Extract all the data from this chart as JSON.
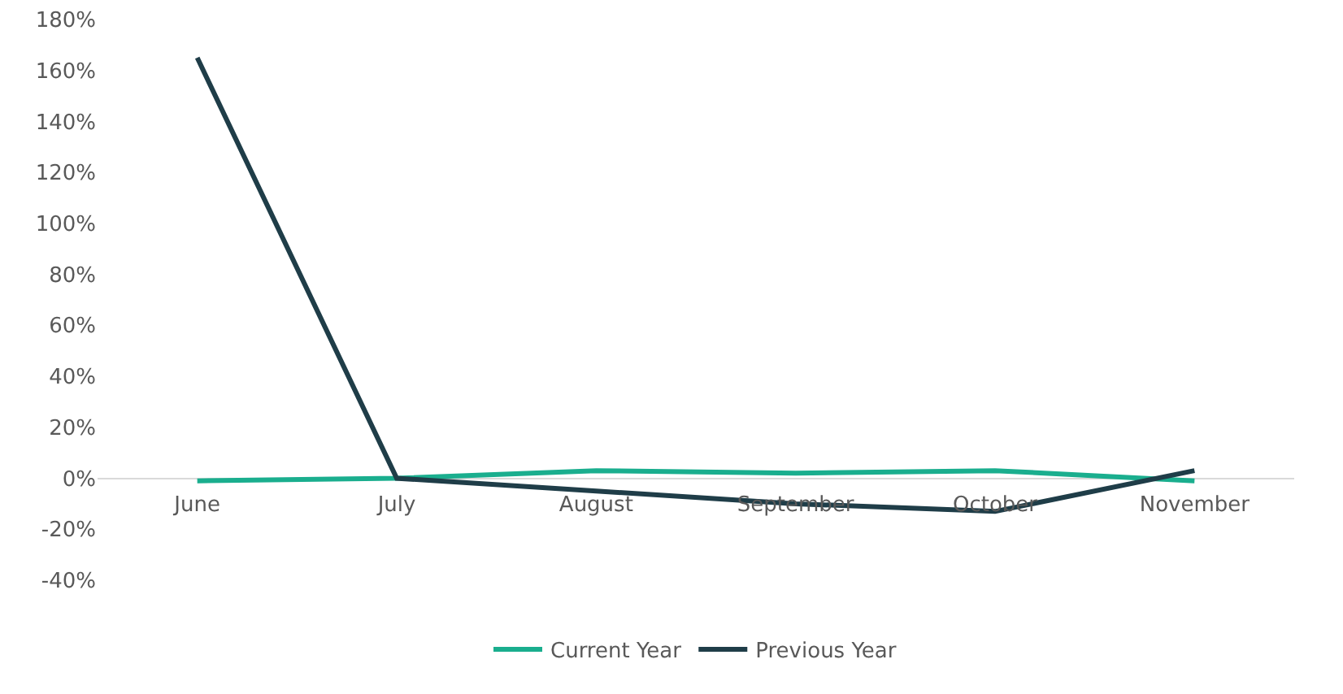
{
  "chart_data": {
    "type": "line",
    "categories": [
      "June",
      "July",
      "August",
      "September",
      "October",
      "November"
    ],
    "series": [
      {
        "name": "Current Year",
        "color": "#1aae8e",
        "values": [
          -1,
          0,
          3,
          2,
          3,
          -1
        ]
      },
      {
        "name": "Previous Year",
        "color": "#1f3d48",
        "values": [
          165,
          0,
          -5,
          -10,
          -13,
          3
        ]
      }
    ],
    "ylim": [
      -40,
      180
    ],
    "yticks": [
      {
        "value": -40,
        "label": "-40%"
      },
      {
        "value": -20,
        "label": "-20%"
      },
      {
        "value": 0,
        "label": "0%"
      },
      {
        "value": 20,
        "label": "20%"
      },
      {
        "value": 40,
        "label": "40%"
      },
      {
        "value": 60,
        "label": "60%"
      },
      {
        "value": 80,
        "label": "80%"
      },
      {
        "value": 100,
        "label": "100%"
      },
      {
        "value": 120,
        "label": "120%"
      },
      {
        "value": 140,
        "label": "140%"
      },
      {
        "value": 160,
        "label": "160%"
      },
      {
        "value": 180,
        "label": "180%"
      }
    ],
    "grid": false,
    "legend": "bottom",
    "marker": "none",
    "line_style": "solid"
  }
}
